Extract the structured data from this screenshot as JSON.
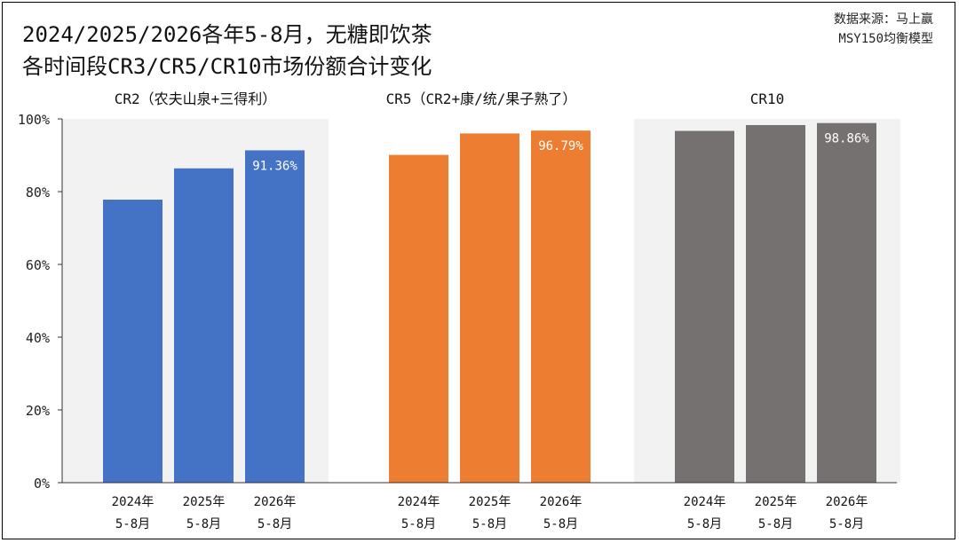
{
  "title": {
    "line1": "2024/2025/2026各年5-8月，无糖即饮茶",
    "line2": "各时间段CR3/CR5/CR10市场份额合计变化"
  },
  "source": {
    "line1": "数据来源：马上赢",
    "line2": "MSY150均衡模型"
  },
  "colors": {
    "cr2": "#4472C4",
    "cr5": "#ED7D31",
    "cr10": "#767171",
    "panel_bg": "#F2F2F2"
  },
  "chart_data": {
    "type": "bar",
    "ylim": [
      0,
      100
    ],
    "yticks": [
      "0%",
      "20%",
      "40%",
      "60%",
      "80%",
      "100%"
    ],
    "categories": [
      [
        "2024年",
        "5-8月"
      ],
      [
        "2025年",
        "5-8月"
      ],
      [
        "2026年",
        "5-8月"
      ]
    ],
    "groups": [
      {
        "name": "CR2（农夫山泉+三得利）",
        "color_key": "cr2",
        "shaded": true,
        "values": [
          77.8,
          86.4,
          91.36
        ],
        "labels": [
          "",
          "",
          "91.36%"
        ]
      },
      {
        "name": "CR5（CR2+康/统/果子熟了）",
        "color_key": "cr5",
        "shaded": false,
        "values": [
          90.1,
          96.0,
          96.79
        ],
        "labels": [
          "",
          "",
          "96.79%"
        ]
      },
      {
        "name": "CR10",
        "color_key": "cr10",
        "shaded": true,
        "values": [
          96.7,
          98.3,
          98.86
        ],
        "labels": [
          "",
          "",
          "98.86%"
        ]
      }
    ]
  }
}
